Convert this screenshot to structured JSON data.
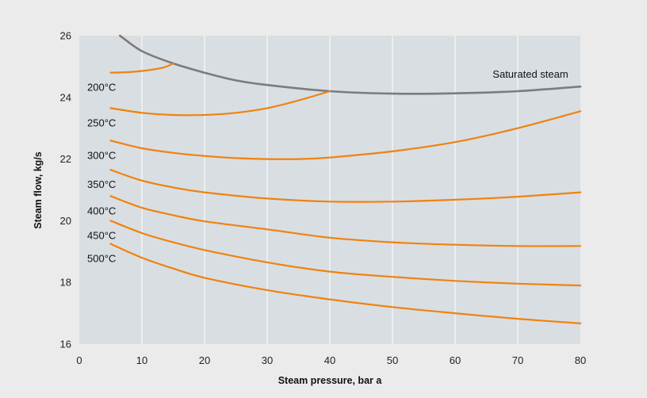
{
  "chart_data": {
    "type": "line",
    "title": "",
    "xlabel": "Steam pressure, bar a",
    "ylabel": "Steam flow, kg/s",
    "xlim": [
      0,
      80
    ],
    "ylim": [
      16,
      26
    ],
    "x_ticks": [
      0,
      10,
      20,
      30,
      40,
      50,
      60,
      70,
      80
    ],
    "y_ticks": [
      16,
      18,
      20,
      22,
      24,
      26
    ],
    "grid": true,
    "legend": "none",
    "colors": {
      "temperature_series": "#f0820f",
      "saturated_series": "#7c7c7c",
      "plot_background": "#d9dee2",
      "grid": "#ffffff"
    },
    "series": [
      {
        "name": "Saturated steam",
        "kind": "saturated",
        "x": [
          6.5,
          10,
          15,
          20,
          25,
          30,
          40,
          50,
          60,
          70,
          80
        ],
        "y": [
          26.0,
          25.5,
          25.1,
          24.8,
          24.55,
          24.4,
          24.2,
          24.12,
          24.13,
          24.2,
          24.35
        ]
      },
      {
        "name": "200°C",
        "kind": "temperature",
        "x": [
          5,
          8,
          11,
          13.5,
          15
        ],
        "y": [
          24.8,
          24.82,
          24.88,
          24.97,
          25.1
        ]
      },
      {
        "name": "250°C",
        "kind": "temperature",
        "x": [
          5,
          10,
          15,
          20,
          25,
          30,
          35,
          40
        ],
        "y": [
          23.65,
          23.5,
          23.43,
          23.43,
          23.5,
          23.65,
          23.9,
          24.2
        ]
      },
      {
        "name": "300°C",
        "kind": "temperature",
        "x": [
          5,
          10,
          15,
          20,
          25,
          30,
          35,
          40,
          50,
          60,
          70,
          80
        ],
        "y": [
          22.6,
          22.35,
          22.2,
          22.1,
          22.03,
          22.0,
          22.0,
          22.05,
          22.25,
          22.55,
          23.0,
          23.55
        ]
      },
      {
        "name": "350°C",
        "kind": "temperature",
        "x": [
          5,
          10,
          15,
          20,
          30,
          40,
          50,
          60,
          70,
          80
        ],
        "y": [
          21.65,
          21.3,
          21.08,
          20.92,
          20.72,
          20.62,
          20.62,
          20.68,
          20.78,
          20.92
        ]
      },
      {
        "name": "400°C",
        "kind": "temperature",
        "x": [
          5,
          10,
          15,
          20,
          30,
          40,
          50,
          60,
          70,
          80
        ],
        "y": [
          20.8,
          20.42,
          20.18,
          19.98,
          19.72,
          19.45,
          19.3,
          19.22,
          19.18,
          19.18
        ]
      },
      {
        "name": "450°C",
        "kind": "temperature",
        "x": [
          5,
          10,
          15,
          20,
          30,
          40,
          50,
          60,
          70,
          80
        ],
        "y": [
          20.0,
          19.6,
          19.3,
          19.05,
          18.65,
          18.35,
          18.18,
          18.05,
          17.96,
          17.9
        ]
      },
      {
        "name": "500°C",
        "kind": "temperature",
        "x": [
          5,
          10,
          15,
          20,
          30,
          40,
          50,
          60,
          70,
          80
        ],
        "y": [
          19.25,
          18.8,
          18.45,
          18.15,
          17.75,
          17.45,
          17.2,
          17.0,
          16.82,
          16.67
        ]
      }
    ]
  }
}
